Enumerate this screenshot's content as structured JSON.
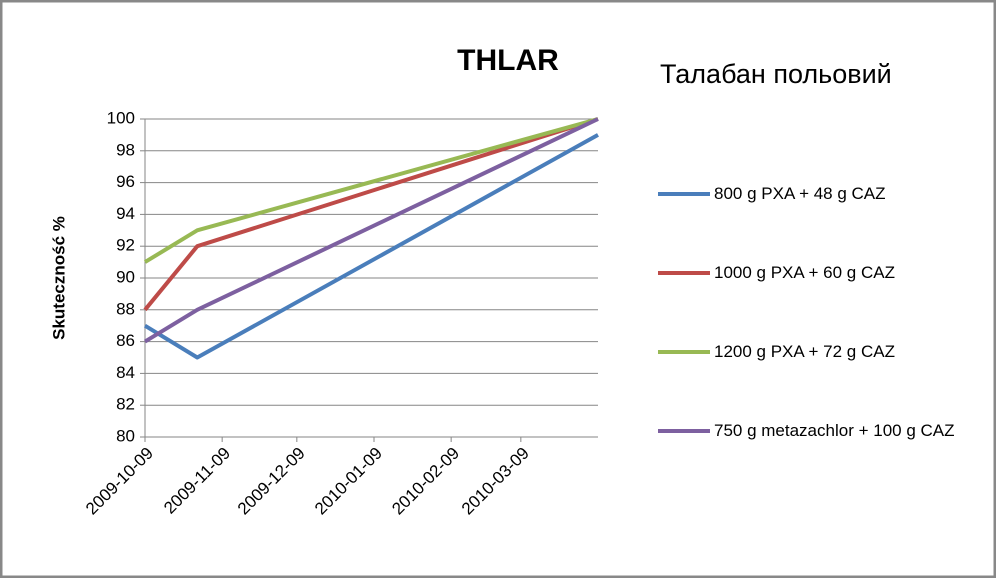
{
  "chart_data": {
    "type": "line",
    "title": "THLAR",
    "subtitle": "Талабан польовий",
    "y_label": "Skuteczność %",
    "x": [
      "2009-10-09",
      "2009-10-30",
      "2010-04-09"
    ],
    "xlim": [
      "2009-10-09",
      "2010-04-09"
    ],
    "xticks": [
      "2009-10-09",
      "2009-11-09",
      "2009-12-09",
      "2010-01-09",
      "2010-02-09",
      "2010-03-09"
    ],
    "ylim": [
      80,
      100
    ],
    "yticks": [
      80,
      82,
      84,
      86,
      88,
      90,
      92,
      94,
      96,
      98,
      100
    ],
    "grid": true,
    "legend": "right",
    "series": [
      {
        "name": "800 g PXA + 48 g CAZ",
        "color": "#4a7ebb",
        "values": [
          87,
          85,
          99
        ]
      },
      {
        "name": "1000 g PXA + 60 g CAZ",
        "color": "#be4b48",
        "values": [
          88,
          92,
          100
        ]
      },
      {
        "name": "1200 g PXA + 72 g CAZ",
        "color": "#98b954",
        "values": [
          91,
          93,
          100
        ]
      },
      {
        "name": "750 g metazachlor + 100 g CAZ",
        "color": "#7d60a0",
        "values": [
          86,
          88,
          100
        ]
      }
    ]
  }
}
